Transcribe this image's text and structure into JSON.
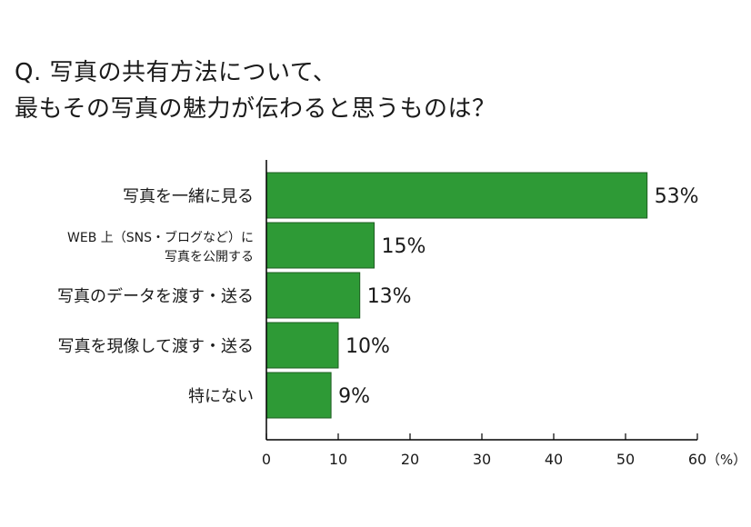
{
  "title": {
    "line1": "Q. 写真の共有方法について、",
    "line2": "最もその写真の魅力が伝わると思うものは？"
  },
  "colors": {
    "bar": "#2e9a36",
    "bar_stroke": "#1e5e22",
    "axis": "#000000"
  },
  "chart_data": {
    "type": "bar",
    "orientation": "horizontal",
    "categories": [
      [
        "写真を一緒に見る"
      ],
      [
        "WEB 上（SNS・ブログなど）に",
        "写真を公開する"
      ],
      [
        "写真のデータを渡す・送る"
      ],
      [
        "写真を現像して渡す・送る"
      ],
      [
        "特にない"
      ]
    ],
    "values": [
      53,
      15,
      13,
      10,
      9
    ],
    "value_labels": [
      "53%",
      "15%",
      "13%",
      "10%",
      "9%"
    ],
    "xlim": [
      0,
      60
    ],
    "xticks": [
      0,
      10,
      20,
      30,
      40,
      50,
      60
    ],
    "xunit": "（%）",
    "grid": false,
    "legend": "none"
  }
}
